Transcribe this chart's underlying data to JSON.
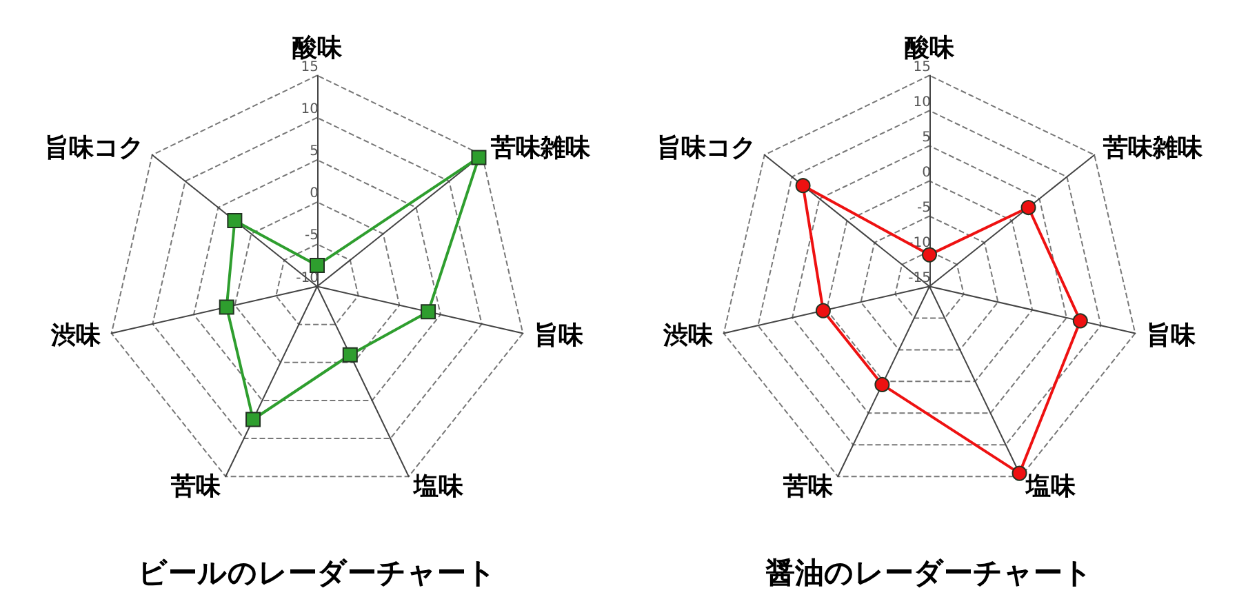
{
  "chart_data": [
    {
      "type": "radar",
      "title": "ビールのレーダーチャート",
      "categories": [
        "酸味",
        "苦味雑味",
        "旨味",
        "塩味",
        "苦味",
        "渋味",
        "旨味コク"
      ],
      "ylim": [
        -10,
        15
      ],
      "yticks": [
        -10,
        -5,
        0,
        5,
        10,
        15
      ],
      "grid": true,
      "marker": "square",
      "series": [
        {
          "color": "#2e9e2e",
          "values": [
            -7.5,
            14.5,
            3.5,
            -1,
            7.5,
            1,
            2.5
          ]
        }
      ]
    },
    {
      "type": "radar",
      "title": "醤油のレーダーチャート",
      "categories": [
        "酸味",
        "苦味雑味",
        "旨味",
        "塩味",
        "苦味",
        "渋味",
        "旨味コク"
      ],
      "ylim": [
        -15,
        15
      ],
      "yticks": [
        -15,
        -10,
        -5,
        0,
        5,
        10,
        15
      ],
      "grid": true,
      "marker": "circle",
      "series": [
        {
          "color": "#ee1111",
          "values": [
            -10.5,
            3,
            7,
            14.5,
            0.5,
            0.5,
            8
          ]
        }
      ]
    }
  ]
}
